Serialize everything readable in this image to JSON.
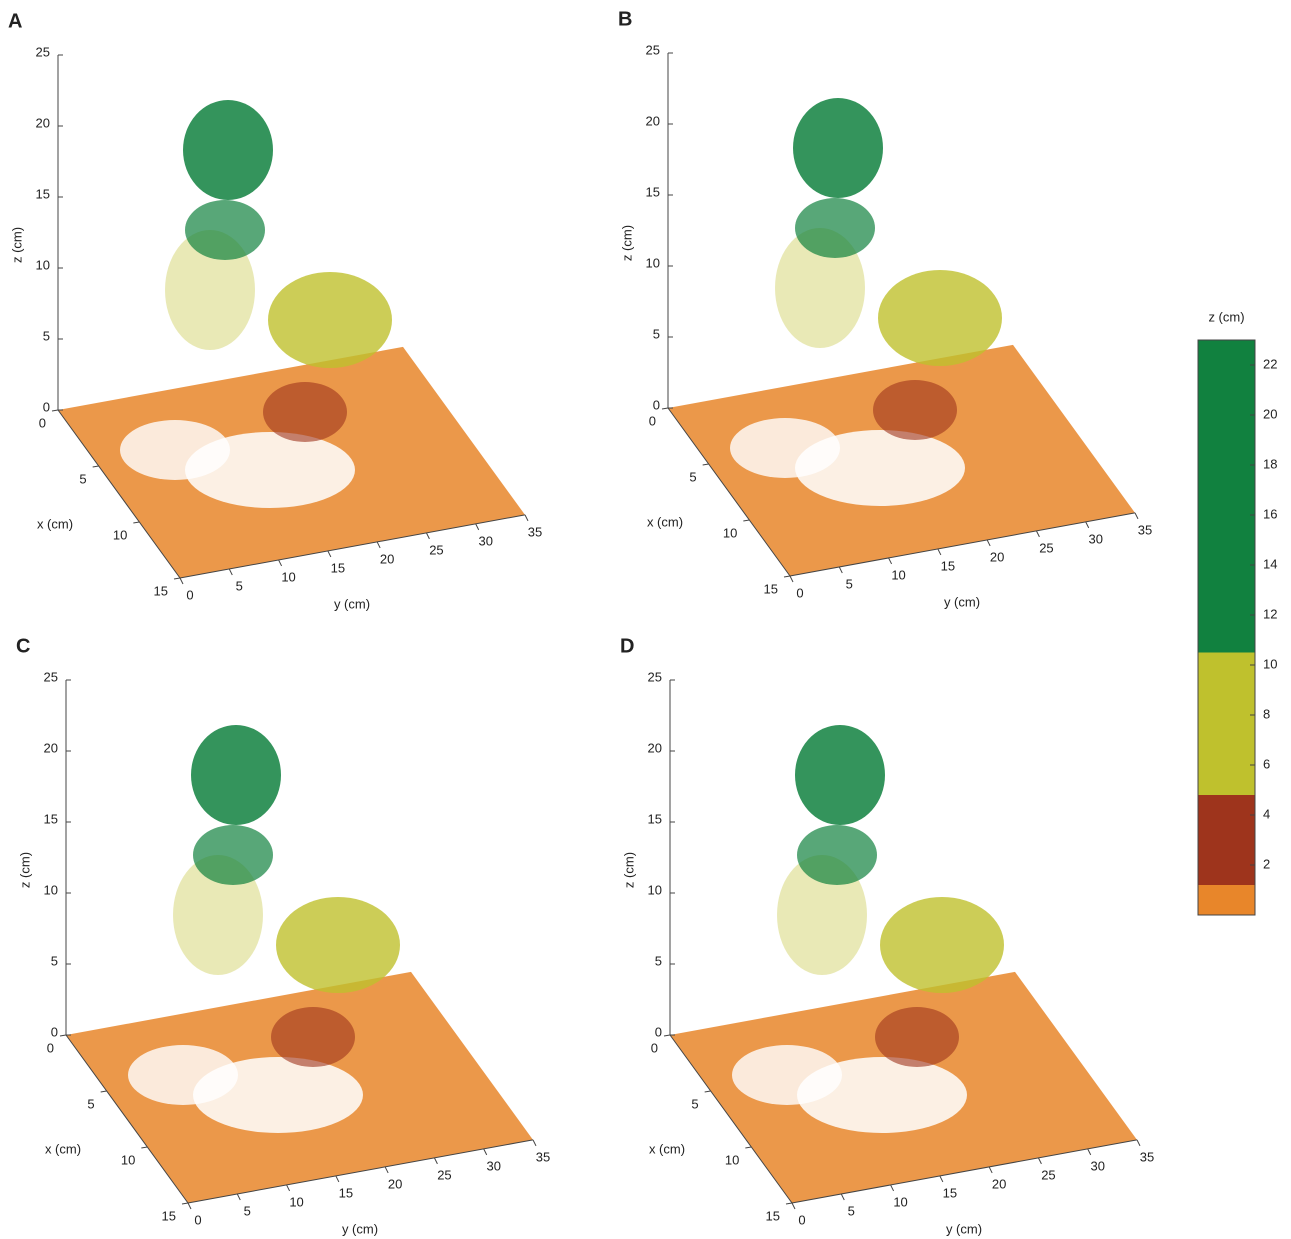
{
  "chart_data": [
    {
      "type": "scatter3d",
      "panel_label": "A",
      "xlabel": "x (cm)",
      "ylabel": "y (cm)",
      "zlabel": "z (cm)",
      "xlim": [
        0,
        15
      ],
      "xticks": [
        0,
        5,
        10,
        15
      ],
      "ylim": [
        0,
        35
      ],
      "yticks": [
        0,
        5,
        10,
        15,
        20,
        25,
        30,
        35
      ],
      "zlim": [
        0,
        25
      ],
      "zticks": [
        0,
        5,
        10,
        15,
        20,
        25
      ]
    },
    {
      "type": "scatter3d",
      "panel_label": "B",
      "xlabel": "x (cm)",
      "ylabel": "y (cm)",
      "zlabel": "z (cm)",
      "xlim": [
        0,
        15
      ],
      "xticks": [
        0,
        5,
        10,
        15
      ],
      "ylim": [
        0,
        35
      ],
      "yticks": [
        0,
        5,
        10,
        15,
        20,
        25,
        30,
        35
      ],
      "zlim": [
        0,
        25
      ],
      "zticks": [
        0,
        5,
        10,
        15,
        20,
        25
      ]
    },
    {
      "type": "scatter3d",
      "panel_label": "C",
      "xlabel": "x (cm)",
      "ylabel": "y (cm)",
      "zlabel": "z (cm)",
      "xlim": [
        0,
        15
      ],
      "xticks": [
        0,
        5,
        10,
        15
      ],
      "ylim": [
        0,
        35
      ],
      "yticks": [
        0,
        5,
        10,
        15,
        20,
        25,
        30,
        35
      ],
      "zlim": [
        0,
        25
      ],
      "zticks": [
        0,
        5,
        10,
        15,
        20,
        25
      ]
    },
    {
      "type": "scatter3d",
      "panel_label": "D",
      "xlabel": "x (cm)",
      "ylabel": "y (cm)",
      "zlabel": "z (cm)",
      "xlim": [
        0,
        15
      ],
      "xticks": [
        0,
        5,
        10,
        15
      ],
      "ylim": [
        0,
        35
      ],
      "yticks": [
        0,
        5,
        10,
        15,
        20,
        25,
        30,
        35
      ],
      "zlim": [
        0,
        25
      ],
      "zticks": [
        0,
        5,
        10,
        15,
        20,
        25
      ]
    },
    {
      "type": "colorbar",
      "label": "z (cm)",
      "lim": [
        0,
        23
      ],
      "ticks": [
        2,
        4,
        6,
        8,
        10,
        12,
        14,
        16,
        18,
        20,
        22
      ],
      "bounds": [
        0,
        1.2,
        4.8,
        10.5,
        23
      ],
      "colors": [
        "#e8862a",
        "#9e341c",
        "#bfc12d",
        "#11813f"
      ]
    }
  ]
}
